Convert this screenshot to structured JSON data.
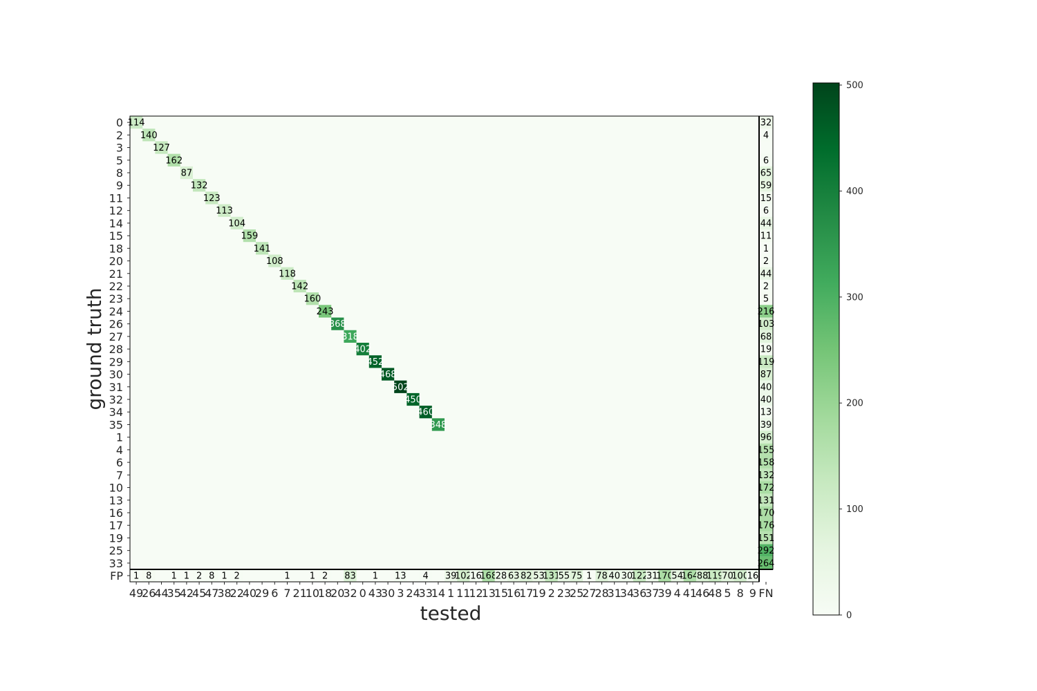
{
  "chart_data": {
    "type": "heatmap",
    "xlabel": "tested",
    "ylabel": "ground truth",
    "cmap": "Greens",
    "colorbar": {
      "min": 0,
      "max": 500,
      "ticks": [
        0,
        100,
        200,
        300,
        400,
        500
      ]
    },
    "y_labels": [
      "0",
      "2",
      "3",
      "5",
      "8",
      "9",
      "11",
      "12",
      "14",
      "15",
      "18",
      "20",
      "21",
      "22",
      "23",
      "24",
      "26",
      "27",
      "28",
      "29",
      "30",
      "31",
      "32",
      "34",
      "35",
      "1",
      "4",
      "6",
      "7",
      "10",
      "13",
      "16",
      "17",
      "19",
      "25",
      "33"
    ],
    "x_labels": [
      "49",
      "26",
      "44",
      "35",
      "42",
      "45",
      "47",
      "38",
      "22",
      "40",
      "29",
      "6",
      "7",
      "21",
      "10",
      "18",
      "20",
      "32",
      "0",
      "43",
      "30",
      "3",
      "24",
      "33",
      "14",
      "1",
      "11",
      "12",
      "13",
      "15",
      "16",
      "17",
      "19",
      "2",
      "23",
      "25",
      "27",
      "28",
      "31",
      "34",
      "36",
      "37",
      "39",
      "4",
      "41",
      "46",
      "48",
      "5",
      "8",
      "9"
    ],
    "diagonal": [
      114,
      140,
      127,
      162,
      87,
      132,
      123,
      113,
      104,
      159,
      141,
      108,
      118,
      142,
      160,
      243,
      368,
      318,
      402,
      452,
      468,
      502,
      450,
      460,
      348
    ],
    "fn_label": "FN",
    "fn": [
      32,
      4,
      null,
      6,
      65,
      59,
      15,
      6,
      44,
      11,
      1,
      2,
      44,
      2,
      5,
      216,
      103,
      68,
      19,
      119,
      87,
      40,
      40,
      13,
      39,
      96,
      155,
      158,
      132,
      172,
      131,
      170,
      176,
      151,
      292,
      264
    ],
    "fp_label": "FP",
    "fp": [
      1,
      8,
      null,
      1,
      1,
      2,
      8,
      1,
      2,
      null,
      null,
      null,
      1,
      null,
      1,
      2,
      null,
      83,
      null,
      1,
      null,
      13,
      null,
      4,
      null,
      39,
      102,
      16,
      168,
      28,
      63,
      82,
      53,
      131,
      55,
      75,
      1,
      78,
      40,
      30,
      122,
      31,
      170,
      54,
      164,
      88,
      119,
      70,
      100,
      16
    ]
  }
}
